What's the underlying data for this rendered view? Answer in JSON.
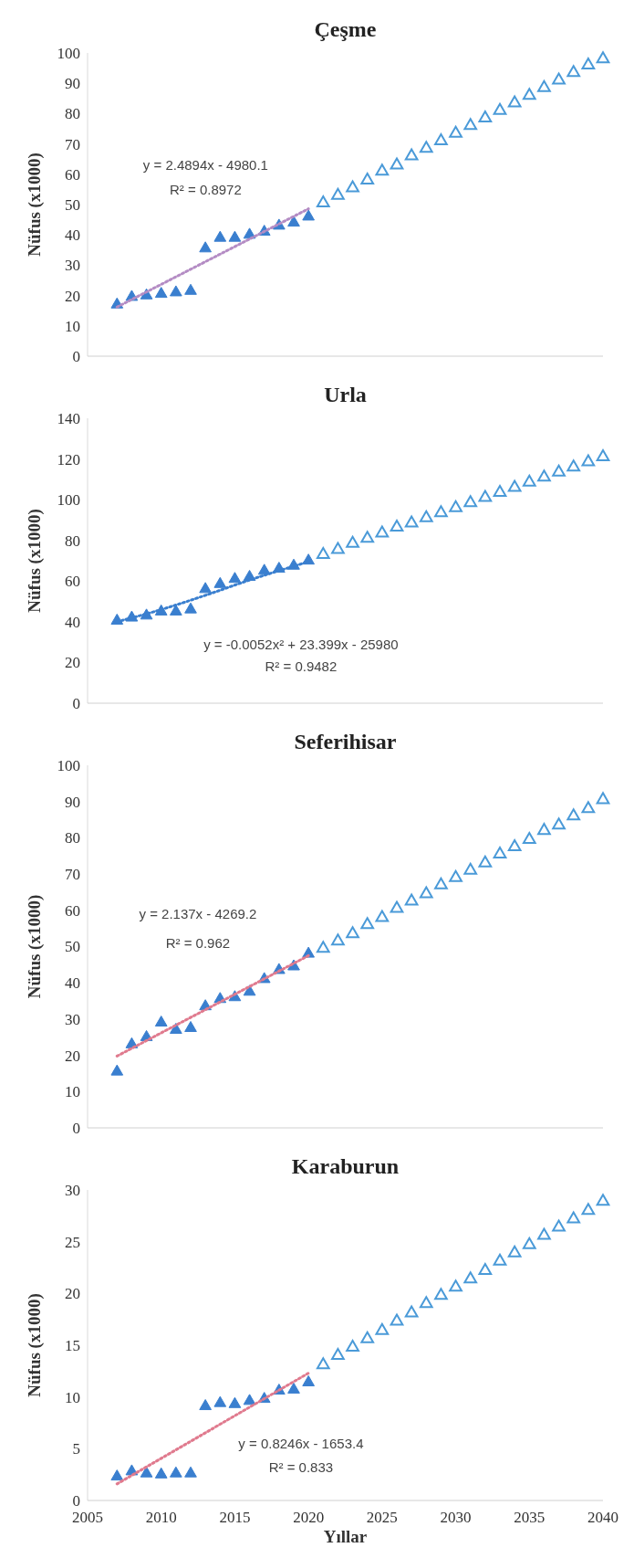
{
  "chart_data": [
    {
      "type": "scatter",
      "title": "Çeşme",
      "ylabel": "Nüfus (x1000)",
      "xlim": [
        2005,
        2040
      ],
      "ylim": [
        0,
        100
      ],
      "yticks": [
        0,
        10,
        20,
        30,
        40,
        50,
        60,
        70,
        80,
        90,
        100
      ],
      "tick_labels": "y",
      "grid": false,
      "series": [
        {
          "color": "#3a7fcf",
          "marker": "triangle",
          "x": [
            2007,
            2008,
            2009,
            2010,
            2011,
            2012,
            2013,
            2014,
            2015,
            2016,
            2017,
            2018,
            2019,
            2020
          ],
          "values": [
            17,
            19.5,
            20,
            20.5,
            21,
            21.5,
            35.5,
            39,
            39,
            40,
            41,
            43,
            44,
            46
          ]
        },
        {
          "color": "#4a9ad8",
          "marker": "triangle",
          "x": [
            2021,
            2022,
            2023,
            2024,
            2025,
            2026,
            2027,
            2028,
            2029,
            2030,
            2031,
            2032,
            2033,
            2034,
            2035,
            2036,
            2037,
            2038,
            2039,
            2040
          ],
          "values": [
            50.5,
            53,
            55.5,
            58,
            61,
            63,
            66,
            68.5,
            71,
            73.5,
            76,
            78.5,
            81,
            83.5,
            86,
            88.5,
            91,
            93.5,
            96,
            98
          ]
        },
        {
          "type": "line",
          "line_style": "dotted",
          "color": "#b48cc4",
          "x": [
            2007,
            2020
          ],
          "values": [
            16.2,
            48.6
          ]
        }
      ],
      "annotations": [
        "y = 2.4894x - 4980.1",
        "R² = 0.8972"
      ]
    },
    {
      "type": "scatter",
      "title": "Urla",
      "ylabel": "Nüfus (x1000)",
      "xlim": [
        2005,
        2040
      ],
      "ylim": [
        0,
        140
      ],
      "yticks": [
        0,
        20,
        40,
        60,
        80,
        100,
        120,
        140
      ],
      "tick_labels": "y",
      "grid": false,
      "series": [
        {
          "color": "#3a7fcf",
          "marker": "triangle",
          "x": [
            2007,
            2008,
            2009,
            2010,
            2011,
            2012,
            2013,
            2014,
            2015,
            2016,
            2017,
            2018,
            2019,
            2020
          ],
          "values": [
            40.5,
            42,
            43,
            45,
            45,
            46,
            56,
            58.5,
            61,
            62,
            65,
            66,
            67.5,
            70
          ]
        },
        {
          "color": "#4a9ad8",
          "marker": "triangle",
          "x": [
            2021,
            2022,
            2023,
            2024,
            2025,
            2026,
            2027,
            2028,
            2029,
            2030,
            2031,
            2032,
            2033,
            2034,
            2035,
            2036,
            2037,
            2038,
            2039,
            2040
          ],
          "values": [
            73,
            75.5,
            78.5,
            81,
            83.5,
            86.5,
            88.5,
            91,
            93.5,
            96,
            98.5,
            101,
            103.5,
            106,
            108.5,
            111,
            113.5,
            116,
            118.5,
            121
          ]
        },
        {
          "type": "line",
          "line_style": "dotted",
          "color": "#3a7fcf",
          "x": [
            2007,
            2010,
            2013,
            2016,
            2020
          ],
          "values": [
            40,
            46,
            53,
            60.5,
            69.5
          ]
        }
      ],
      "annotations": [
        "y = -0.0052x² + 23.399x - 25980",
        "R² = 0.9482"
      ]
    },
    {
      "type": "scatter",
      "title": "Seferihisar",
      "ylabel": "Nüfus (x1000)",
      "xlim": [
        2005,
        2040
      ],
      "ylim": [
        0,
        100
      ],
      "yticks": [
        0,
        10,
        20,
        30,
        40,
        50,
        60,
        70,
        80,
        90,
        100
      ],
      "tick_labels": "y",
      "grid": false,
      "series": [
        {
          "color": "#3a7fcf",
          "marker": "triangle",
          "x": [
            2007,
            2008,
            2009,
            2010,
            2011,
            2012,
            2013,
            2014,
            2015,
            2016,
            2017,
            2018,
            2019,
            2020
          ],
          "values": [
            15.5,
            23,
            25,
            29,
            27,
            27.5,
            33.5,
            35.5,
            36,
            37.5,
            41,
            43.5,
            44.5,
            48
          ]
        },
        {
          "color": "#4a9ad8",
          "marker": "triangle",
          "x": [
            2021,
            2022,
            2023,
            2024,
            2025,
            2026,
            2027,
            2028,
            2029,
            2030,
            2031,
            2032,
            2033,
            2034,
            2035,
            2036,
            2037,
            2038,
            2039,
            2040
          ],
          "values": [
            49.5,
            51.5,
            53.5,
            56,
            58,
            60.5,
            62.5,
            64.5,
            67,
            69,
            71,
            73,
            75.5,
            77.5,
            79.5,
            82,
            83.5,
            86,
            88,
            90.5
          ]
        },
        {
          "type": "line",
          "line_style": "dotted",
          "color": "#e07a8e",
          "x": [
            2007,
            2020
          ],
          "values": [
            19.8,
            47.5
          ]
        }
      ],
      "annotations": [
        "y = 2.137x - 4269.2",
        "R² = 0.962"
      ]
    },
    {
      "type": "scatter",
      "title": "Karaburun",
      "xlabel": "Yıllar",
      "ylabel": "Nüfus (x1000)",
      "xlim": [
        2005,
        2040
      ],
      "xticks": [
        2005,
        2010,
        2015,
        2020,
        2025,
        2030,
        2035,
        2040
      ],
      "ylim": [
        0,
        30
      ],
      "yticks": [
        0,
        5,
        10,
        15,
        20,
        25,
        30
      ],
      "grid": false,
      "series": [
        {
          "color": "#3a7fcf",
          "marker": "triangle",
          "x": [
            2007,
            2008,
            2009,
            2010,
            2011,
            2012,
            2013,
            2014,
            2015,
            2016,
            2017,
            2018,
            2019,
            2020
          ],
          "values": [
            2.3,
            2.8,
            2.6,
            2.5,
            2.6,
            2.6,
            9.1,
            9.4,
            9.3,
            9.6,
            9.8,
            10.6,
            10.7,
            11.4
          ]
        },
        {
          "color": "#4a9ad8",
          "marker": "triangle",
          "x": [
            2021,
            2022,
            2023,
            2024,
            2025,
            2026,
            2027,
            2028,
            2029,
            2030,
            2031,
            2032,
            2033,
            2034,
            2035,
            2036,
            2037,
            2038,
            2039,
            2040
          ],
          "values": [
            13.1,
            14,
            14.8,
            15.6,
            16.4,
            17.3,
            18.1,
            19,
            19.8,
            20.6,
            21.4,
            22.2,
            23.1,
            23.9,
            24.7,
            25.6,
            26.4,
            27.2,
            28,
            28.9
          ]
        },
        {
          "type": "line",
          "line_style": "dotted",
          "color": "#e07a8e",
          "x": [
            2007,
            2020
          ],
          "values": [
            1.6,
            12.3
          ]
        }
      ],
      "annotations": [
        "y = 0.8246x - 1653.4",
        "R² = 0.833"
      ]
    }
  ]
}
